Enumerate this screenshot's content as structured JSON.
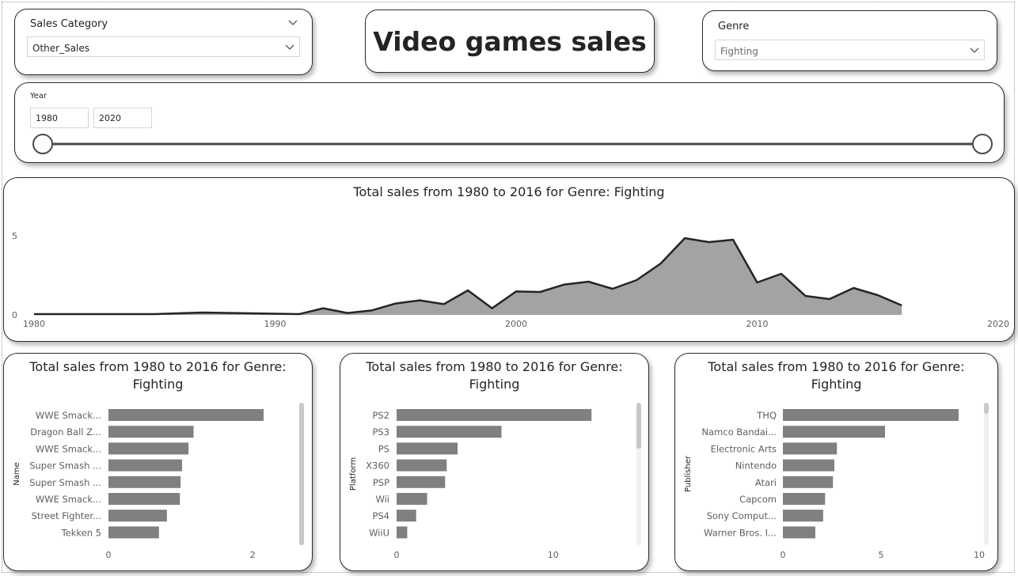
{
  "sales_category": {
    "title": "Sales Category",
    "value": "Other_Sales"
  },
  "page_title": "Video games sales",
  "genre": {
    "title": "Genre",
    "value": "Fighting"
  },
  "year": {
    "title": "Year",
    "from": "1980",
    "to": "2020",
    "range": [
      1980,
      2020
    ],
    "selected": [
      1980,
      2020
    ]
  },
  "colors": {
    "area_fill": "#a3a3a3",
    "line": "#252423",
    "bar": "#808080",
    "border": "#2b2b2b"
  },
  "chart_data": [
    {
      "type": "area",
      "title": "Total sales from 1980 to 2016 for Genre: Fighting",
      "xlabel": "",
      "ylabel": "",
      "xlim": [
        1980,
        2020
      ],
      "ylim": [
        0,
        6
      ],
      "x_ticks": [
        "1980",
        "1990",
        "2000",
        "2010",
        "2020"
      ],
      "y_ticks": [
        "0",
        "5"
      ],
      "grid": false,
      "x": [
        1980,
        1985,
        1987,
        1991,
        1992,
        1993,
        1994,
        1995,
        1996,
        1997,
        1998,
        1999,
        2000,
        2001,
        2002,
        2003,
        2004,
        2005,
        2006,
        2007,
        2008,
        2009,
        2010,
        2011,
        2012,
        2013,
        2014,
        2015,
        2016
      ],
      "values": [
        0.05,
        0.05,
        0.15,
        0.05,
        0.42,
        0.12,
        0.28,
        0.72,
        0.92,
        0.68,
        1.55,
        0.42,
        1.48,
        1.45,
        1.92,
        2.1,
        1.65,
        2.2,
        3.25,
        4.85,
        4.6,
        4.75,
        2.05,
        2.6,
        1.2,
        1.0,
        1.7,
        1.25,
        0.6
      ]
    },
    {
      "type": "bar",
      "orientation": "horizontal",
      "title": "Total sales from 1980 to 2016 for Genre: Fighting",
      "ylabel": "Name",
      "xlabel": "",
      "xlim": [
        0,
        2.6
      ],
      "x_ticks": [
        "0",
        "2"
      ],
      "categories": [
        "WWE Smack...",
        "Dragon Ball Z...",
        "WWE Smack...",
        "Super Smash ...",
        "Super Smash ...",
        "WWE Smack...",
        "Street Fighter...",
        "Tekken 5"
      ],
      "values": [
        2.15,
        1.18,
        1.11,
        1.02,
        1.0,
        0.99,
        0.81,
        0.7
      ]
    },
    {
      "type": "bar",
      "orientation": "horizontal",
      "title": "Total sales from 1980 to 2016 for Genre: Fighting",
      "ylabel": "Platform",
      "xlabel": "",
      "xlim": [
        0,
        13.5
      ],
      "x_ticks": [
        "0",
        "10"
      ],
      "categories": [
        "PS2",
        "PS3",
        "PS",
        "X360",
        "PSP",
        "Wii",
        "PS4",
        "WiiU"
      ],
      "values": [
        12.45,
        6.7,
        3.9,
        3.2,
        3.1,
        1.95,
        1.25,
        0.68
      ]
    },
    {
      "type": "bar",
      "orientation": "horizontal",
      "title": "Total sales from 1980 to 2016 for Genre: Fighting",
      "ylabel": "Publisher",
      "xlabel": "",
      "xlim": [
        0,
        10
      ],
      "x_ticks": [
        "0",
        "5",
        "10"
      ],
      "categories": [
        "THQ",
        "Namco Bandai...",
        "Electronic Arts",
        "Nintendo",
        "Atari",
        "Capcom",
        "Sony Comput...",
        "Warner Bros. I..."
      ],
      "values": [
        8.95,
        5.2,
        2.75,
        2.62,
        2.55,
        2.15,
        2.05,
        1.65
      ]
    }
  ]
}
